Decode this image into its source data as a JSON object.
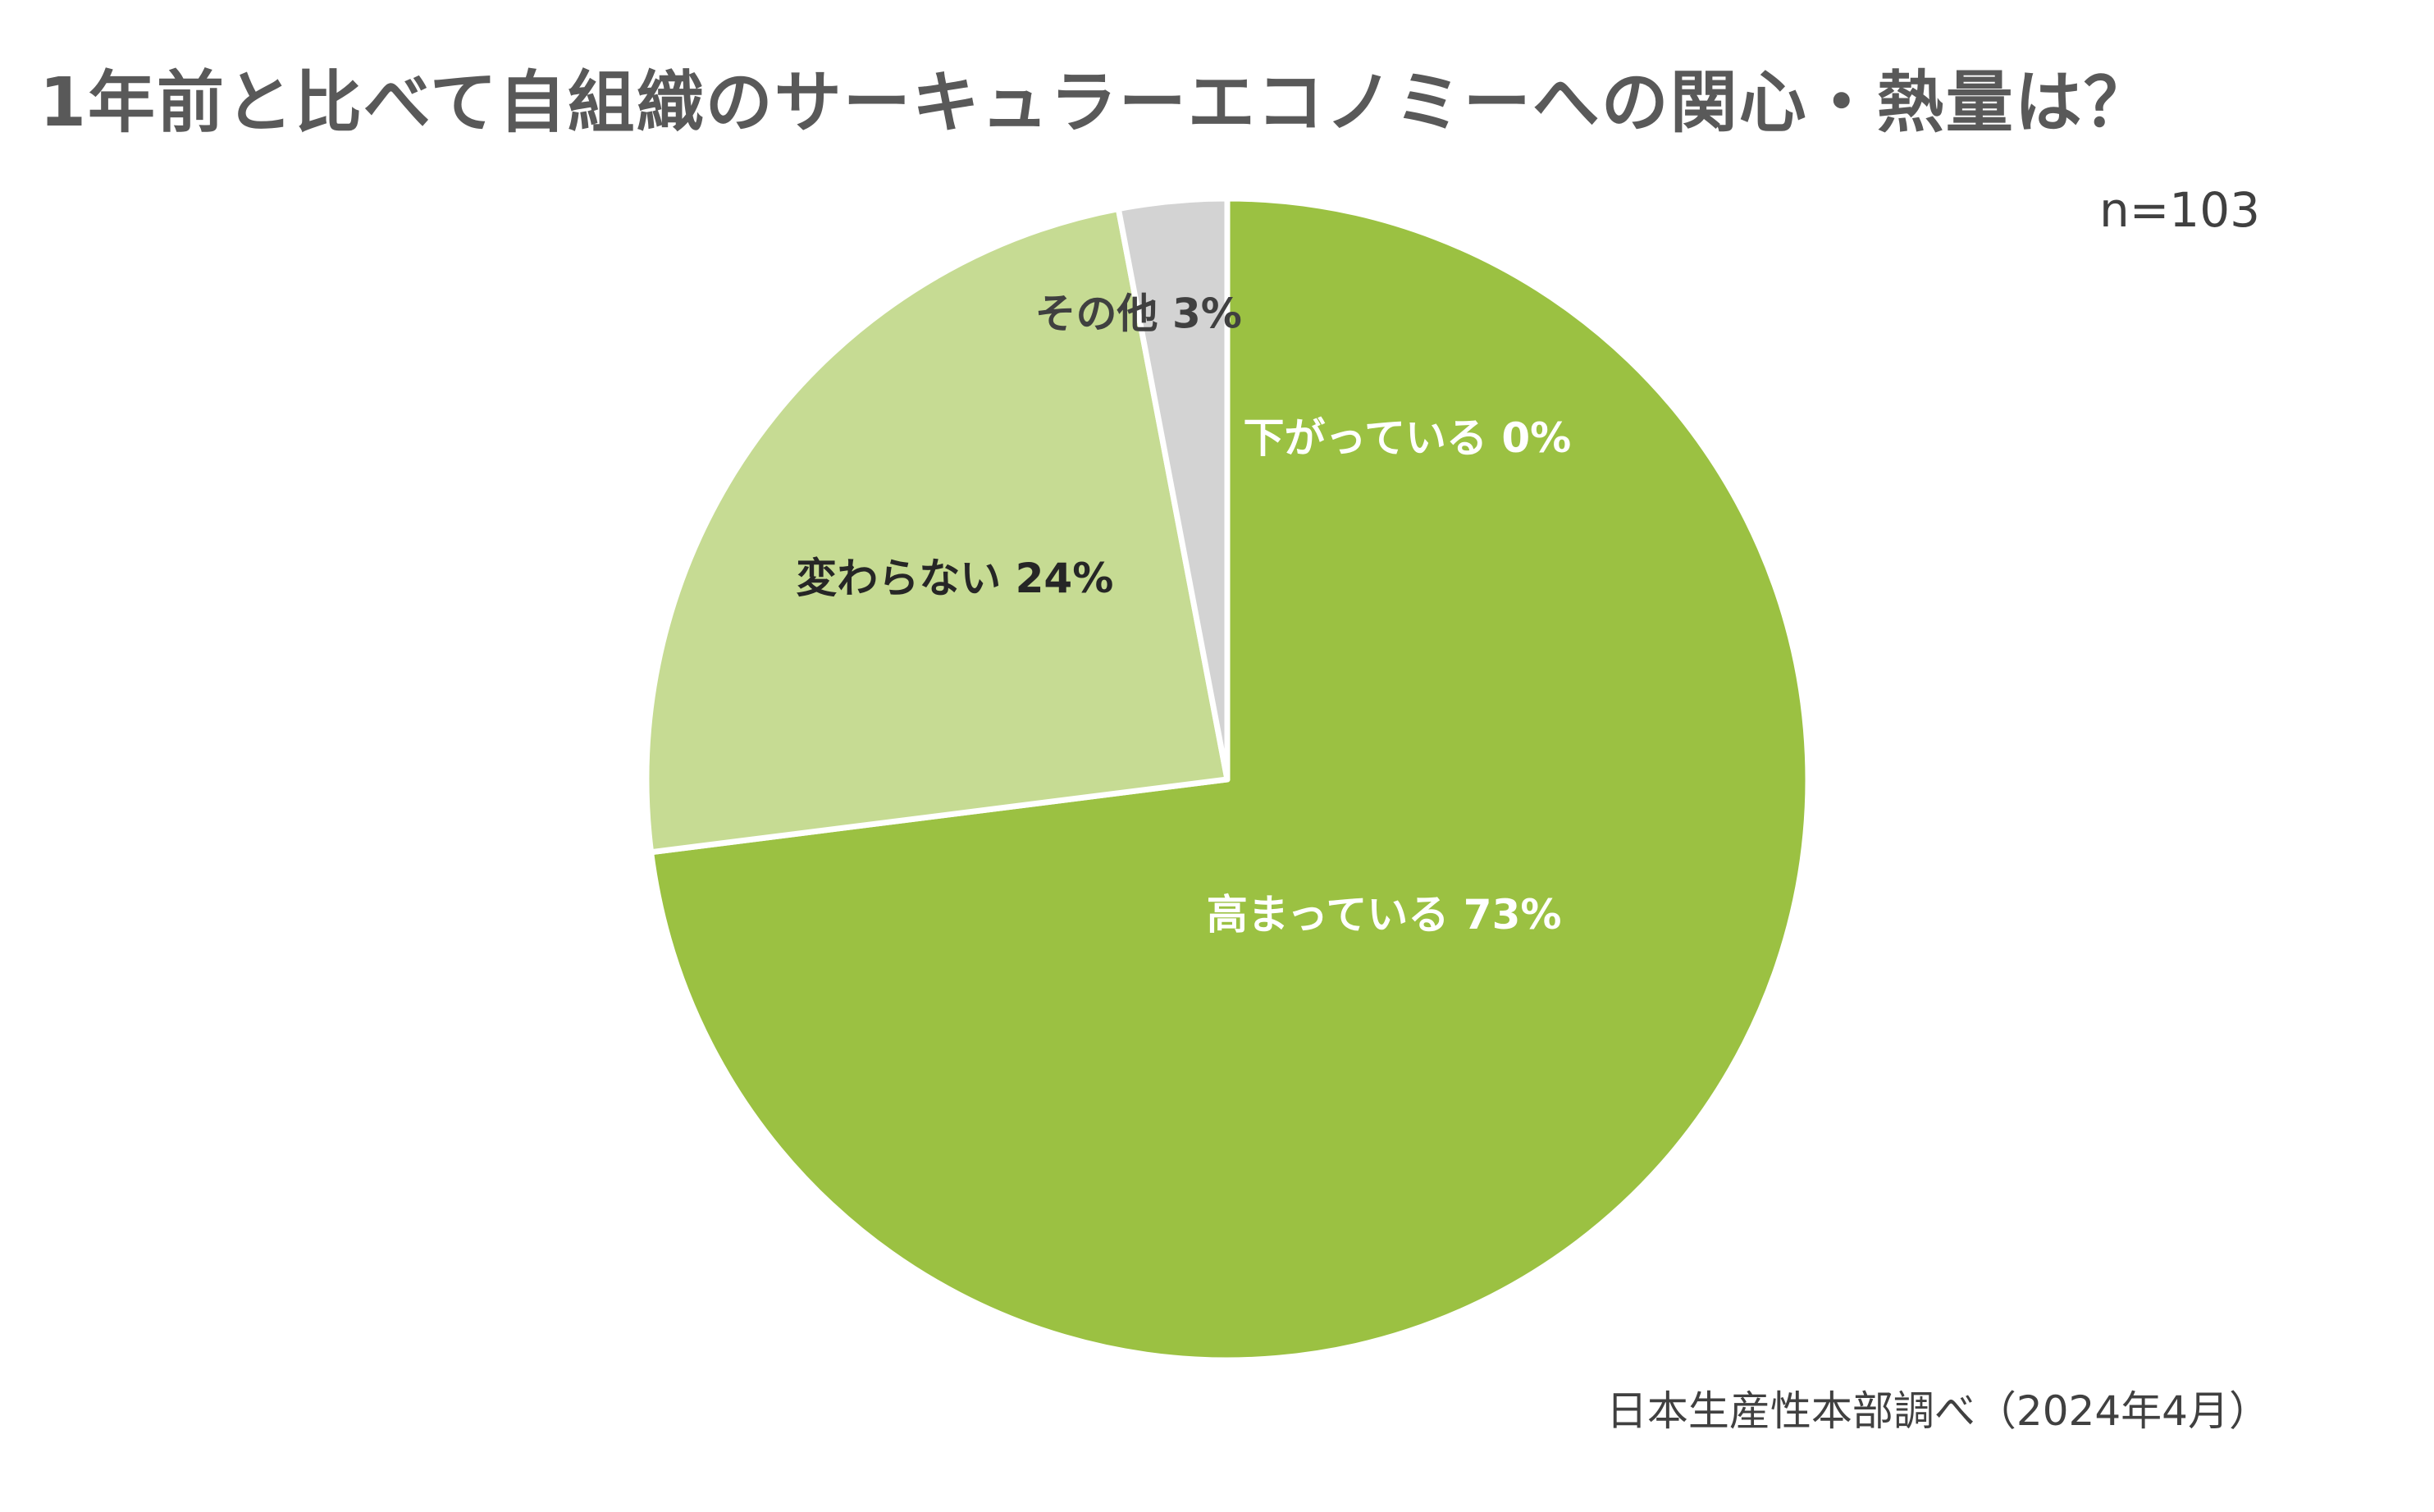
{
  "chart_data": {
    "type": "pie",
    "title": "1年前と比べて自組織のサーキュラーエコノミーへの関心・熱量は？",
    "sample_size": "n=103",
    "source": "日本生産性本部調べ（2024年4月）",
    "start_angle_deg": 0,
    "direction": "clockwise",
    "slices": [
      {
        "label": "下がっている 0%",
        "name": "下がっている",
        "value": 0,
        "color": "#9BC142",
        "label_color": "#FFFFFF"
      },
      {
        "label": "高まっている 73%",
        "name": "高まっている",
        "value": 73,
        "color": "#9BC142",
        "label_color": "#FFFFFF"
      },
      {
        "label": "変わらない 24%",
        "name": "変わらない",
        "value": 24,
        "color": "#C6DB93",
        "label_color": "#262626"
      },
      {
        "label": "その他 3%",
        "name": "その他",
        "value": 3,
        "color": "#D3D3D3",
        "label_color": "#404040"
      }
    ]
  }
}
